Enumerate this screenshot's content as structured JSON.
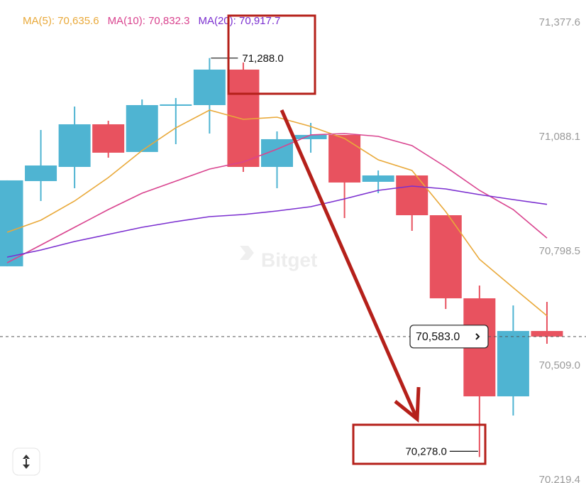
{
  "chart_data": {
    "type": "candlestick",
    "watermark": "Bitget",
    "up_color": "#4fb4d2",
    "down_color": "#e8525f",
    "ylim": [
      70212.2,
      71435.1
    ],
    "yticks": [
      {
        "value": 71377.6,
        "label": "71,377.6"
      },
      {
        "value": 71088.1,
        "label": "71,088.1"
      },
      {
        "value": 70798.5,
        "label": "70,798.5"
      },
      {
        "value": 70509.0,
        "label": "70,509.0"
      },
      {
        "value": 70219.4,
        "label": "70,219.4"
      }
    ],
    "open": [
      70760.8,
      70976.6,
      71012.5,
      71120.4,
      71050.3,
      71167.2,
      71169.0,
      71258.9,
      71012.5,
      71082.7,
      71093.5,
      70974.8,
      70990.9,
      70890.2,
      70679.8,
      70431.6,
      70597.1
    ],
    "high": [
      70978.4,
      71106.0,
      71165.4,
      71129.4,
      71183.4,
      71187.0,
      71288.0,
      71276.9,
      71102.4,
      71124.0,
      71093.5,
      71003.5,
      70990.9,
      70890.2,
      70712.2,
      70661.8,
      70670.8
    ],
    "low": [
      70760.8,
      70926.2,
      70958.6,
      71035.9,
      71050.3,
      71070.1,
      71097.0,
      71000.0,
      70958.6,
      71048.5,
      70883.0,
      70946.0,
      70850.7,
      70652.8,
      70278.0,
      70383.1,
      70564.7
    ],
    "close": [
      70978.4,
      71016.1,
      71120.4,
      71048.5,
      71169.0,
      71170.8,
      71258.9,
      71012.5,
      71082.7,
      71093.5,
      70973.0,
      70990.9,
      70890.2,
      70679.8,
      70431.6,
      70597.1,
      70583.0
    ],
    "series": [
      {
        "name": "MA(5): 70,635.6",
        "color": "#e9a93a",
        "values": [
          70847.1,
          70877.6,
          70926.2,
          70985.5,
          71053.9,
          71111.4,
          71156.4,
          71133.0,
          71138.4,
          71115.0,
          71084.5,
          71030.5,
          71003.5,
          70899.2,
          70778.7,
          70706.8,
          70635.6
        ]
      },
      {
        "name": "MA(10): 70,832.3",
        "color": "#d9448f",
        "values": [
          70769.7,
          70814.7,
          70859.7,
          70904.6,
          70946.0,
          70976.6,
          71007.1,
          71025.1,
          71057.5,
          71093.5,
          71097.0,
          71089.9,
          71066.5,
          71012.5,
          70953.2,
          70904.6,
          70832.3
        ]
      },
      {
        "name": "MA(20): 70,917.7",
        "color": "#7b2fd0",
        "values": [
          70784.1,
          70802.1,
          70823.7,
          70841.7,
          70859.7,
          70874.0,
          70886.6,
          70892.0,
          70901.0,
          70911.8,
          70931.6,
          70953.2,
          70964.0,
          70956.8,
          70942.4,
          70929.8,
          70917.7
        ]
      }
    ],
    "annotations": [
      {
        "value": 71288.0,
        "label": "71,288.0"
      },
      {
        "value": 70278.0,
        "label": "70,278.0"
      }
    ],
    "last_price": {
      "value": 70583.0,
      "label": "70,583.0"
    }
  }
}
